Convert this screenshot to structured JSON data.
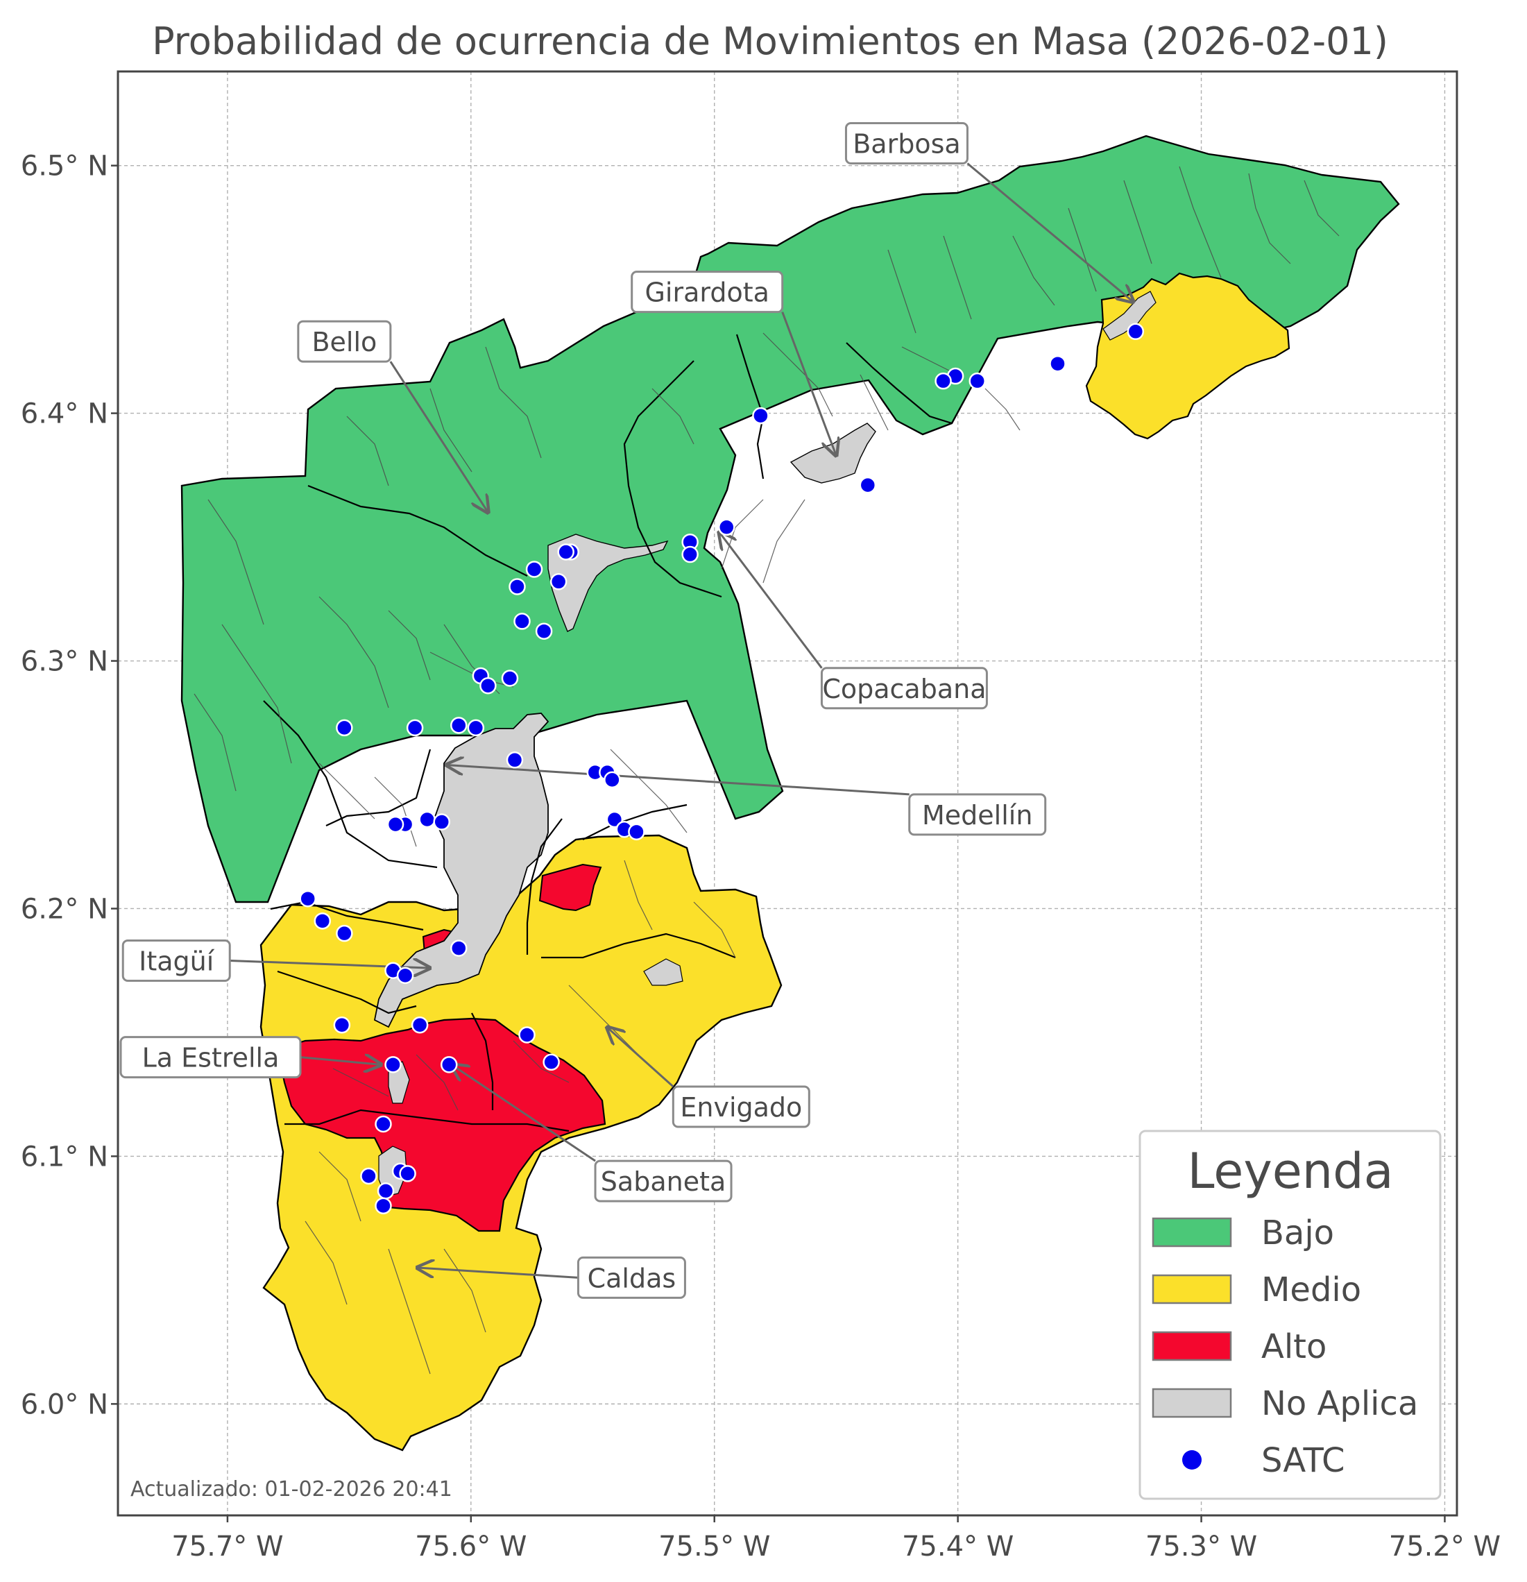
{
  "title": "Probabilidad de ocurrencia de Movimientos en Masa (2026-02-01)",
  "footer": "Actualizado: 01-02-2026 20:41",
  "axes": {
    "lon_min": -75.745,
    "lon_max": -75.195,
    "lat_min": 5.955,
    "lat_max": 6.538,
    "x_ticks": [
      {
        "value": -75.7,
        "label": "75.7° W"
      },
      {
        "value": -75.6,
        "label": "75.6° W"
      },
      {
        "value": -75.5,
        "label": "75.5° W"
      },
      {
        "value": -75.4,
        "label": "75.4° W"
      },
      {
        "value": -75.3,
        "label": "75.3° W"
      },
      {
        "value": -75.2,
        "label": "75.2° W"
      }
    ],
    "y_ticks": [
      {
        "value": 6.5,
        "label": "6.5° N"
      },
      {
        "value": 6.4,
        "label": "6.4° N"
      },
      {
        "value": 6.3,
        "label": "6.3° N"
      },
      {
        "value": 6.2,
        "label": "6.2° N"
      },
      {
        "value": 6.1,
        "label": "6.1° N"
      },
      {
        "value": 6.0,
        "label": "6.0° N"
      }
    ],
    "grid": true
  },
  "colors": {
    "bajo": "#4bc878",
    "medio": "#fbe02a",
    "alto": "#f4072e",
    "no_aplica": "#d2d2d2",
    "satc": "#0000ee",
    "border": "#000000",
    "sub_border": "#4a4a4a",
    "arrow": "#666666",
    "frame": "#444444",
    "text": "#4a4a4a"
  },
  "legend": {
    "title": "Leyenda",
    "position": "bottom-right",
    "items": [
      {
        "label": "Bajo",
        "color_key": "bajo",
        "kind": "patch"
      },
      {
        "label": "Medio",
        "color_key": "medio",
        "kind": "patch"
      },
      {
        "label": "Alto",
        "color_key": "alto",
        "kind": "patch"
      },
      {
        "label": "No Aplica",
        "color_key": "no_aplica",
        "kind": "patch"
      },
      {
        "label": "SATC",
        "color_key": "satc",
        "kind": "dot"
      }
    ]
  },
  "municipalities": [
    {
      "name": "Barbosa",
      "label_lon": -75.421,
      "label_lat": 6.509,
      "arrow_lon": -75.328,
      "arrow_lat": 6.445
    },
    {
      "name": "Girardota",
      "label_lon": -75.503,
      "label_lat": 6.449,
      "arrow_lon": -75.45,
      "arrow_lat": 6.383
    },
    {
      "name": "Bello",
      "label_lon": -75.652,
      "label_lat": 6.429,
      "arrow_lon": -75.593,
      "arrow_lat": 6.36
    },
    {
      "name": "Copacabana",
      "label_lon": -75.422,
      "label_lat": 6.289,
      "arrow_lon": -75.498,
      "arrow_lat": 6.352
    },
    {
      "name": "Medellín",
      "label_lon": -75.392,
      "label_lat": 6.238,
      "arrow_lon": -75.61,
      "arrow_lat": 6.258
    },
    {
      "name": "Itagüí",
      "label_lon": -75.721,
      "label_lat": 6.179,
      "arrow_lon": -75.617,
      "arrow_lat": 6.176
    },
    {
      "name": "La Estrella",
      "label_lon": -75.717,
      "label_lat": 6.14,
      "arrow_lon": -75.637,
      "arrow_lat": 6.137
    },
    {
      "name": "Envigado",
      "label_lon": -75.489,
      "label_lat": 6.12,
      "arrow_lon": -75.544,
      "arrow_lat": 6.152
    },
    {
      "name": "Sabaneta",
      "label_lon": -75.521,
      "label_lat": 6.09,
      "arrow_lon": -75.608,
      "arrow_lat": 6.137
    },
    {
      "name": "Caldas",
      "label_lon": -75.534,
      "label_lat": 6.051,
      "arrow_lon": -75.622,
      "arrow_lat": 6.055
    }
  ],
  "satc_stations": [
    [
      -75.327,
      6.433
    ],
    [
      -75.359,
      6.42
    ],
    [
      -75.392,
      6.413
    ],
    [
      -75.401,
      6.415
    ],
    [
      -75.406,
      6.413
    ],
    [
      -75.481,
      6.399
    ],
    [
      -75.437,
      6.371
    ],
    [
      -75.495,
      6.354
    ],
    [
      -75.51,
      6.348
    ],
    [
      -75.51,
      6.343
    ],
    [
      -75.559,
      6.344
    ],
    [
      -75.561,
      6.344
    ],
    [
      -75.564,
      6.332
    ],
    [
      -75.574,
      6.337
    ],
    [
      -75.581,
      6.33
    ],
    [
      -75.579,
      6.316
    ],
    [
      -75.57,
      6.312
    ],
    [
      -75.596,
      6.294
    ],
    [
      -75.593,
      6.29
    ],
    [
      -75.584,
      6.293
    ],
    [
      -75.623,
      6.273
    ],
    [
      -75.605,
      6.274
    ],
    [
      -75.598,
      6.273
    ],
    [
      -75.652,
      6.273
    ],
    [
      -75.582,
      6.26
    ],
    [
      -75.549,
      6.255
    ],
    [
      -75.544,
      6.255
    ],
    [
      -75.542,
      6.252
    ],
    [
      -75.541,
      6.236
    ],
    [
      -75.537,
      6.232
    ],
    [
      -75.532,
      6.231
    ],
    [
      -75.618,
      6.236
    ],
    [
      -75.627,
      6.234
    ],
    [
      -75.631,
      6.234
    ],
    [
      -75.612,
      6.235
    ],
    [
      -75.667,
      6.204
    ],
    [
      -75.661,
      6.195
    ],
    [
      -75.652,
      6.19
    ],
    [
      -75.605,
      6.184
    ],
    [
      -75.632,
      6.175
    ],
    [
      -75.627,
      6.173
    ],
    [
      -75.621,
      6.153
    ],
    [
      -75.653,
      6.153
    ],
    [
      -75.577,
      6.149
    ],
    [
      -75.567,
      6.138
    ],
    [
      -75.609,
      6.137
    ],
    [
      -75.632,
      6.137
    ],
    [
      -75.636,
      6.113
    ],
    [
      -75.642,
      6.092
    ],
    [
      -75.629,
      6.094
    ],
    [
      -75.626,
      6.093
    ],
    [
      -75.635,
      6.086
    ],
    [
      -75.636,
      6.08
    ]
  ]
}
